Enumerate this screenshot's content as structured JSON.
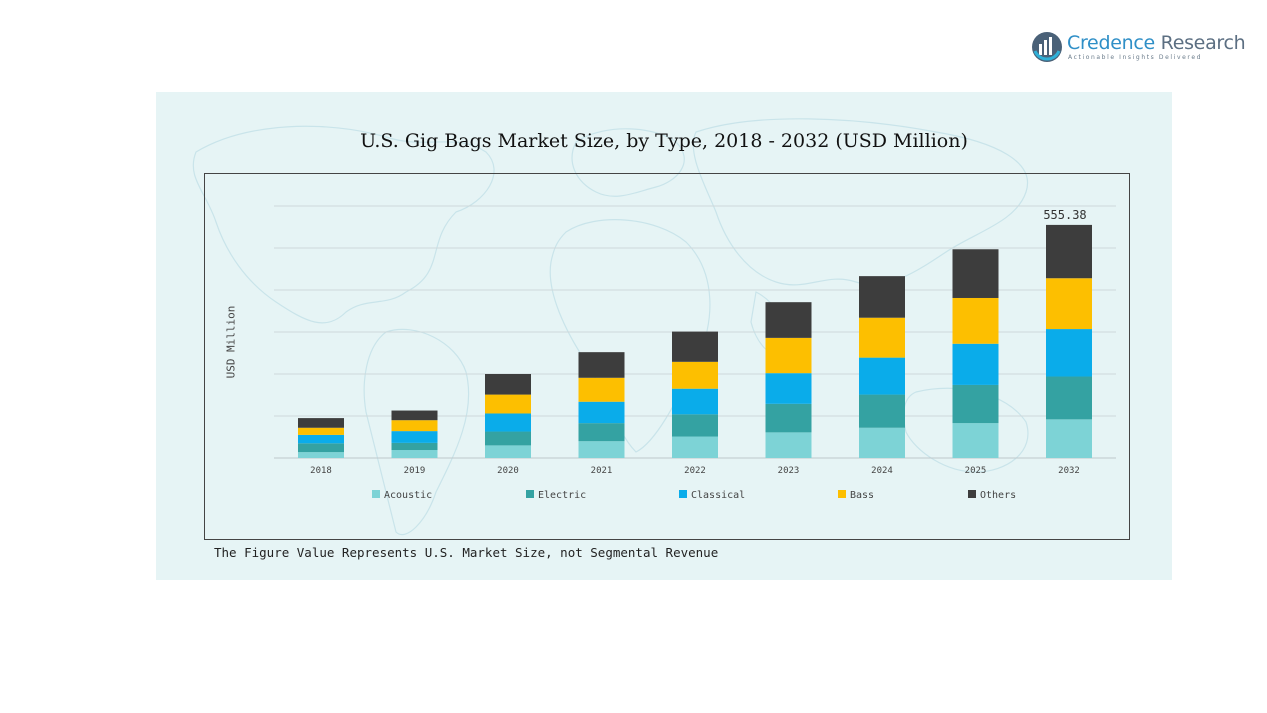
{
  "brand": {
    "name_primary": "Credence",
    "name_secondary": "Research",
    "tagline": "Actionable Insights Delivered"
  },
  "footnote": "The Figure Value Represents U.S. Market Size, not Segmental Revenue",
  "colors": {
    "Acoustic": "#7dd3d6",
    "Electric": "#34a2a2",
    "Classical": "#0aacea",
    "Bass": "#fdbf00",
    "Others": "#3d3d3d",
    "panel": "#e6f4f5"
  },
  "chart_data": {
    "type": "bar",
    "stacked": true,
    "title": "U.S. Gig Bags Market Size, by Type, 2018 - 2032 (USD Million)",
    "xlabel": "",
    "ylabel": "USD Million",
    "ylim": [
      0,
      600
    ],
    "grid": true,
    "legend_position": "bottom",
    "categories": [
      "2018",
      "2019",
      "2020",
      "2021",
      "2022",
      "2023",
      "2024",
      "2025",
      "2032"
    ],
    "series": [
      {
        "name": "Acoustic",
        "values": [
          14,
          19,
          30,
          40,
          51,
          61,
          72,
          83,
          92
        ]
      },
      {
        "name": "Electric",
        "values": [
          21,
          17,
          33,
          43,
          53,
          68,
          79,
          91,
          102
        ]
      },
      {
        "name": "Classical",
        "values": [
          20,
          28,
          43,
          51,
          61,
          73,
          88,
          98,
          113
        ]
      },
      {
        "name": "Bass",
        "values": [
          17,
          26,
          45,
          57,
          64,
          84,
          95,
          109,
          121
        ]
      },
      {
        "name": "Others",
        "values": [
          23,
          23,
          49,
          61,
          72,
          85,
          99,
          116,
          127
        ]
      }
    ],
    "annotations": [
      {
        "category": "2032",
        "text": "555.38"
      }
    ]
  }
}
